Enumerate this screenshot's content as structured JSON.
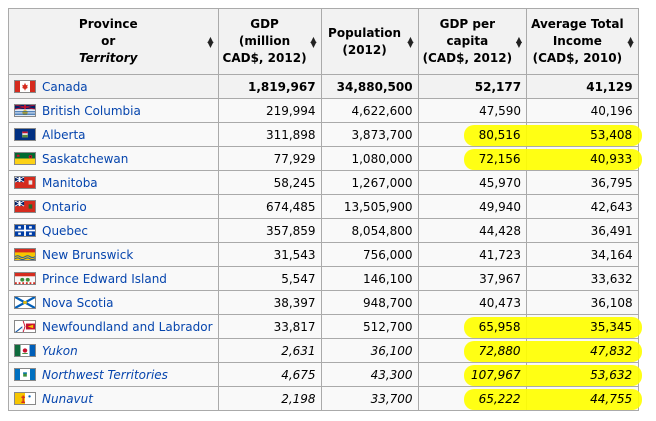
{
  "headers": {
    "province": "Province",
    "or": "or",
    "territory": "Territory",
    "gdp_line1": "GDP",
    "gdp_line2": "(million",
    "gdp_line3": "CAD$, 2012)",
    "pop_line1": "Population",
    "pop_line2": "(2012)",
    "gdppc_line1": "GDP per",
    "gdppc_line2": "capita",
    "gdppc_line3": "(CAD$, 2012)",
    "income_line1": "Average Total",
    "income_line2": "Income",
    "income_line3": "(CAD$, 2010)"
  },
  "rows": [
    {
      "name": "Canada",
      "gdp": "1,819,967",
      "pop": "34,880,500",
      "gdppc": "52,177",
      "income": "41,129",
      "flag": "canada",
      "territory": false,
      "total": true
    },
    {
      "name": "British Columbia",
      "gdp": "219,994",
      "pop": "4,622,600",
      "gdppc": "47,590",
      "income": "40,196",
      "flag": "bc",
      "territory": false
    },
    {
      "name": "Alberta",
      "gdp": "311,898",
      "pop": "3,873,700",
      "gdppc": "80,516",
      "income": "53,408",
      "flag": "alberta",
      "territory": false
    },
    {
      "name": "Saskatchewan",
      "gdp": "77,929",
      "pop": "1,080,000",
      "gdppc": "72,156",
      "income": "40,933",
      "flag": "sask",
      "territory": false
    },
    {
      "name": "Manitoba",
      "gdp": "58,245",
      "pop": "1,267,000",
      "gdppc": "45,970",
      "income": "36,795",
      "flag": "manitoba",
      "territory": false
    },
    {
      "name": "Ontario",
      "gdp": "674,485",
      "pop": "13,505,900",
      "gdppc": "49,940",
      "income": "42,643",
      "flag": "ontario",
      "territory": false
    },
    {
      "name": "Quebec",
      "gdp": "357,859",
      "pop": "8,054,800",
      "gdppc": "44,428",
      "income": "36,491",
      "flag": "quebec",
      "territory": false
    },
    {
      "name": "New Brunswick",
      "gdp": "31,543",
      "pop": "756,000",
      "gdppc": "41,723",
      "income": "34,164",
      "flag": "nb",
      "territory": false
    },
    {
      "name": "Prince Edward Island",
      "gdp": "5,547",
      "pop": "146,100",
      "gdppc": "37,967",
      "income": "33,632",
      "flag": "pei",
      "territory": false
    },
    {
      "name": "Nova Scotia",
      "gdp": "38,397",
      "pop": "948,700",
      "gdppc": "40,473",
      "income": "36,108",
      "flag": "ns",
      "territory": false
    },
    {
      "name": "Newfoundland and Labrador",
      "gdp": "33,817",
      "pop": "512,700",
      "gdppc": "65,958",
      "income": "35,345",
      "flag": "nl",
      "territory": false
    },
    {
      "name": "Yukon",
      "gdp": "2,631",
      "pop": "36,100",
      "gdppc": "72,880",
      "income": "47,832",
      "flag": "yukon",
      "territory": true
    },
    {
      "name": "Northwest Territories",
      "gdp": "4,675",
      "pop": "43,300",
      "gdppc": "107,967",
      "income": "53,632",
      "flag": "nwt",
      "territory": true
    },
    {
      "name": "Nunavut",
      "gdp": "2,198",
      "pop": "33,700",
      "gdppc": "65,222",
      "income": "44,755",
      "flag": "nunavut",
      "territory": true
    }
  ],
  "highlighted_row_indexes": [
    2,
    3,
    10,
    11,
    12,
    13
  ],
  "colors": {
    "header_bg": "#f2f2f2",
    "row_bg": "#f9f9f9",
    "border": "#aaaaaa",
    "link": "#0645ad",
    "highlight": "#ffff00"
  }
}
